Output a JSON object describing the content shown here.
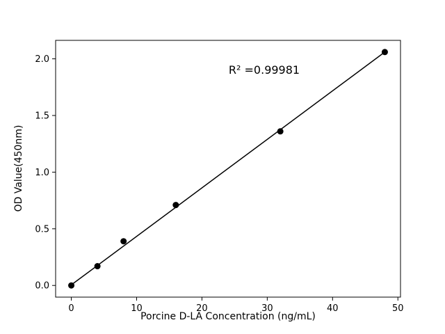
{
  "chart_data": {
    "type": "scatter",
    "x": [
      0,
      4,
      8,
      16,
      32,
      48
    ],
    "y": [
      0.0,
      0.17,
      0.39,
      0.71,
      1.36,
      2.06
    ],
    "fit_line": {
      "x": [
        0,
        48
      ],
      "y": [
        0.005,
        2.06
      ]
    },
    "annotation": "R² =0.99981",
    "xlabel": "Porcine D-LA Concentration (ng/mL)",
    "ylabel": "OD Value(450nm)",
    "xlim": [
      -2.4,
      50.4
    ],
    "ylim": [
      -0.103,
      2.163
    ],
    "xticks": [
      0,
      10,
      20,
      30,
      40,
      50
    ],
    "yticks": [
      0.0,
      0.5,
      1.0,
      1.5,
      2.0
    ],
    "legend": null,
    "grid": false,
    "colors": {
      "point": "#000000",
      "line": "#000000",
      "frame": "#000000"
    }
  }
}
